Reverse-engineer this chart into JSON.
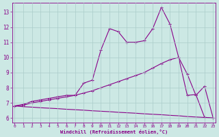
{
  "xlabel": "Windchill (Refroidissement éolien,°C)",
  "background_color": "#cce8e4",
  "grid_color": "#aaccca",
  "line_color": "#880088",
  "x_ticks": [
    0,
    1,
    2,
    3,
    4,
    5,
    6,
    7,
    8,
    9,
    10,
    11,
    12,
    13,
    14,
    15,
    16,
    17,
    18,
    19,
    20,
    21,
    22,
    23
  ],
  "y_ticks": [
    6,
    7,
    8,
    9,
    10,
    11,
    12,
    13
  ],
  "ylim": [
    5.7,
    13.6
  ],
  "xlim": [
    -0.3,
    23.3
  ],
  "series1_x": [
    0,
    1,
    2,
    3,
    4,
    5,
    6,
    7,
    8,
    9,
    10,
    11,
    12,
    13,
    14,
    15,
    16,
    17,
    18,
    19,
    20,
    21,
    22,
    23
  ],
  "series1_y": [
    6.8,
    6.9,
    7.1,
    7.2,
    7.3,
    7.4,
    7.5,
    7.5,
    8.3,
    8.5,
    10.5,
    11.9,
    11.7,
    11.0,
    11.0,
    11.1,
    11.9,
    13.3,
    12.2,
    10.0,
    8.9,
    7.5,
    8.1,
    6.0
  ],
  "series2_x": [
    0,
    1,
    2,
    3,
    4,
    5,
    6,
    7,
    8,
    9,
    10,
    11,
    12,
    13,
    14,
    15,
    16,
    17,
    18,
    19,
    20,
    21,
    22,
    23
  ],
  "series2_y": [
    6.8,
    6.85,
    7.0,
    7.1,
    7.2,
    7.3,
    7.4,
    7.5,
    7.65,
    7.8,
    8.0,
    8.2,
    8.4,
    8.6,
    8.8,
    9.0,
    9.3,
    9.6,
    9.85,
    10.0,
    7.5,
    7.55,
    6.05,
    6.0
  ],
  "series3_x": [
    0,
    1,
    2,
    3,
    4,
    5,
    6,
    7,
    8,
    9,
    10,
    11,
    12,
    13,
    14,
    15,
    16,
    17,
    18,
    19,
    20,
    21,
    22,
    23
  ],
  "series3_y": [
    6.8,
    6.75,
    6.72,
    6.68,
    6.65,
    6.62,
    6.58,
    6.55,
    6.52,
    6.48,
    6.45,
    6.42,
    6.38,
    6.35,
    6.32,
    6.28,
    6.25,
    6.22,
    6.18,
    6.15,
    6.1,
    6.07,
    6.04,
    6.0
  ]
}
